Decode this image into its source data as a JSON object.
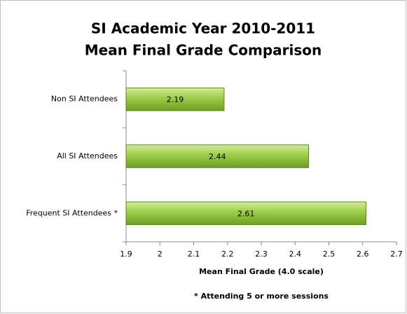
{
  "chart_data": {
    "type": "barh",
    "title": "SI Academic Year 2010-2011",
    "subtitle": "Mean Final Grade Comparison",
    "categories": [
      "Non SI Attendees",
      "All SI Attendees",
      "Frequent SI Attendees *"
    ],
    "values": [
      2.19,
      2.44,
      2.61
    ],
    "color": "#8cbf3a",
    "xlim": [
      1.9,
      2.7
    ],
    "xticks": [
      1.9,
      2,
      2.1,
      2.2,
      2.3,
      2.4,
      2.5,
      2.6,
      2.7
    ],
    "xlabel": "Mean Final Grade (4.0 scale)",
    "annotation": "* Attending 5 or more sessions",
    "grid": false
  }
}
